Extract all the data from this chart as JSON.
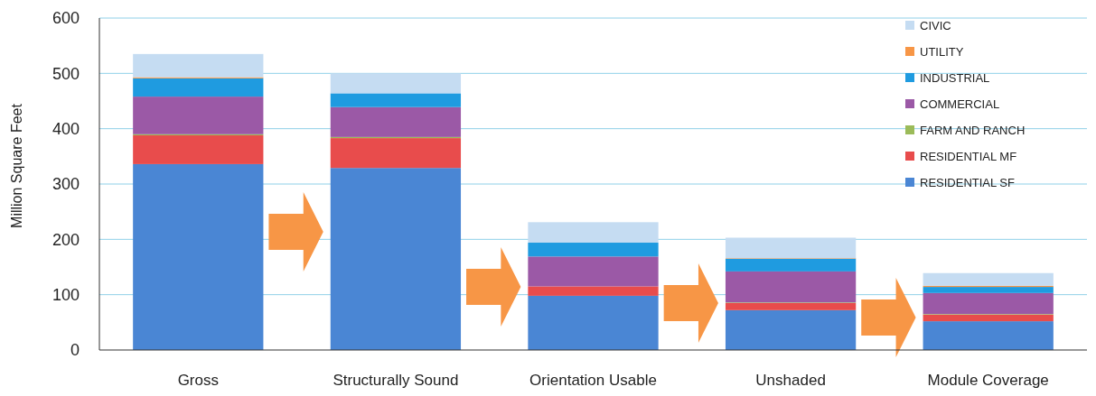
{
  "chart_data": {
    "type": "bar",
    "stacked": true,
    "ylabel": "Million Square Feet",
    "categories": [
      "Gross",
      "Structurally Sound",
      "Orientation Usable",
      "Unshaded",
      "Module Coverage"
    ],
    "series": [
      {
        "name": "RESIDENTIAL  SF",
        "color": "#4a86d4",
        "values": [
          336,
          329,
          98,
          72,
          52
        ]
      },
      {
        "name": "RESIDENTIAL  MF",
        "color": "#e84c4c",
        "values": [
          52,
          54,
          17,
          13,
          12
        ]
      },
      {
        "name": "FARM AND  RANCH",
        "color": "#9bbb59",
        "values": [
          2,
          2,
          null,
          1,
          1
        ]
      },
      {
        "name": "COMMERCIAL",
        "color": "#9b59a6",
        "values": [
          68,
          54,
          54,
          56,
          38
        ]
      },
      {
        "name": "INDUSTRIAL",
        "color": "#1f9be0",
        "values": [
          33,
          25,
          25,
          23,
          11
        ]
      },
      {
        "name": "UTILITY",
        "color": "#f79646",
        "values": [
          2,
          null,
          null,
          1,
          2
        ]
      },
      {
        "name": "CIVIC",
        "color": "#c5dcf2",
        "values": [
          42,
          36,
          37,
          37,
          23
        ]
      }
    ],
    "ylim": [
      0,
      600
    ],
    "yticks": [
      0,
      100,
      200,
      300,
      400,
      500,
      600
    ],
    "grid": "y",
    "legend": "top right"
  }
}
